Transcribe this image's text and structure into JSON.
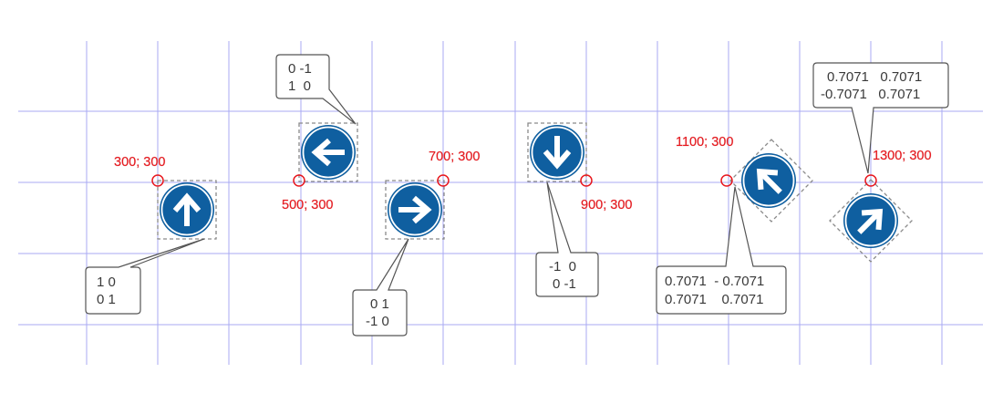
{
  "colors": {
    "grid": "#8d8ef0",
    "sign_blue": "#0f5fa0",
    "sign_white": "#ffffff",
    "origin_marker": "#e8181e",
    "bbox": "#8a8a8a",
    "callout_border": "#555555",
    "text": "#3a3a3a"
  },
  "examples": [
    {
      "coord_label": "300; 300",
      "arrow_direction": "up",
      "matrix_lines": [
        "1 0",
        "0 1"
      ]
    },
    {
      "coord_label": "500; 300",
      "arrow_direction": "left",
      "matrix_lines": [
        "0 -1",
        "1  0"
      ]
    },
    {
      "coord_label": "700; 300",
      "arrow_direction": "right",
      "matrix_lines": [
        "0 1",
        "-1 0"
      ]
    },
    {
      "coord_label": "900; 300",
      "arrow_direction": "down",
      "matrix_lines": [
        "-1  0",
        "0 -1"
      ]
    },
    {
      "coord_label": "1100; 300",
      "arrow_direction": "up-left",
      "matrix_lines": [
        "0.7071  - 0.7071",
        "0.7071    0.7071"
      ]
    },
    {
      "coord_label": "1300; 300",
      "arrow_direction": "up-right",
      "matrix_lines": [
        "0.7071   0.7071",
        "-0.7071   0.7071"
      ]
    }
  ]
}
